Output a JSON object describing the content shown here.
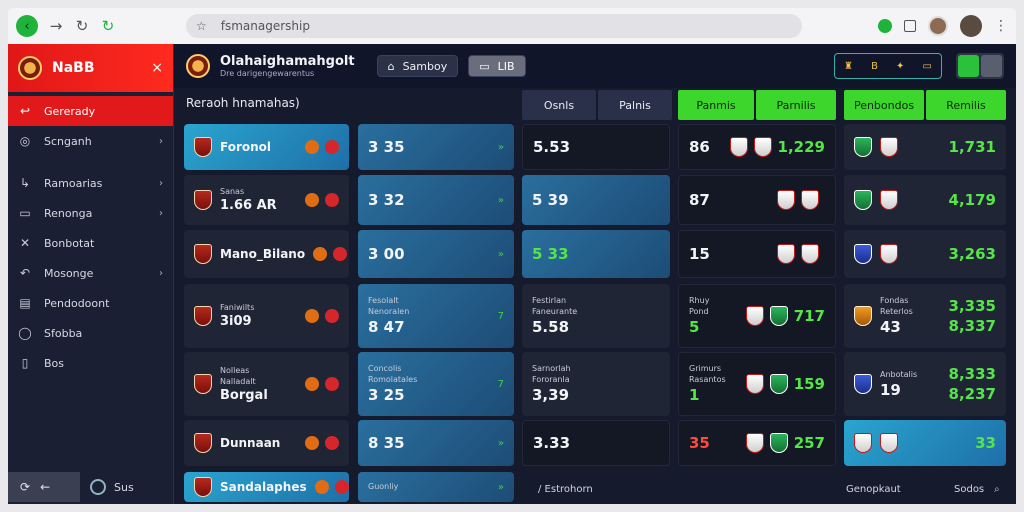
{
  "browser": {
    "url": "fsmanagership",
    "nav_back": "‹",
    "nav_forward": "→",
    "nav_reload": "↻",
    "nav_extra": "↻",
    "star": "☆",
    "menu": "⋮"
  },
  "sidebar": {
    "brand": "NаBB",
    "close": "×",
    "items": [
      {
        "label": "Gererady",
        "icon": "↩",
        "chev": ""
      },
      {
        "label": "Scnganh",
        "icon": "◎",
        "chev": "›"
      },
      {
        "label": "Ramoarias",
        "icon": "↳",
        "chev": "›"
      },
      {
        "label": "Renonga",
        "icon": "▭",
        "chev": "›"
      },
      {
        "label": "Bonbotat",
        "icon": "✕",
        "chev": ""
      },
      {
        "label": "Mosonge",
        "icon": "↶",
        "chev": "›"
      },
      {
        "label": "Pendodoont",
        "icon": "▤",
        "chev": ""
      },
      {
        "label": "Sfobba",
        "icon": "◯",
        "chev": ""
      },
      {
        "label": "Bos",
        "icon": "▯",
        "chev": ""
      }
    ],
    "footer_left_icon": "⟳",
    "footer_left_label": "←",
    "footer_right": "Sus"
  },
  "topbar": {
    "title": "Olahaighamahgolt",
    "subtitle": "Dre darigengewarentus",
    "btn1_icon": "⌂",
    "btn1": "Samboy",
    "btn2_icon": "▭",
    "btn2": "LIB",
    "status": [
      "♜",
      "B",
      "✦",
      "▭"
    ]
  },
  "main": {
    "section_title": "Reraoh hnamahas)",
    "tabs_dark": [
      "Osnls",
      "Palnis"
    ],
    "tabs_green1": [
      "Panmis",
      "Parnilis"
    ],
    "tabs_green2": [
      "Penbondos",
      "Remilis"
    ]
  },
  "col1": [
    {
      "label": "Foronol",
      "kind": "bright"
    },
    {
      "top": "Sanas",
      "label": "1.66 AR",
      "kind": "dark"
    },
    {
      "label": "Mano_Bilano",
      "kind": "dark"
    },
    {
      "top": "Faniwilts",
      "label": "3i09",
      "kind": "dark"
    },
    {
      "top": "Nolleas",
      "sub": "Nalladalt",
      "label": "Borgal",
      "kind": "dark"
    },
    {
      "label": "Dunnaan",
      "kind": "dark"
    },
    {
      "label": "Sandalaphes",
      "kind": "bright"
    }
  ],
  "col2": [
    {
      "val": "3 35"
    },
    {
      "val": "3 32"
    },
    {
      "val": "3 00"
    },
    {
      "top": "Fesolalt",
      "sub": "Nenoralen",
      "val": "8 47",
      "tick": "7"
    },
    {
      "top": "Concolis",
      "sub": "Romolatales",
      "val": "3 25",
      "tick": "7"
    },
    {
      "val": "8 35"
    },
    {
      "top": "Guonliy",
      "val": ""
    }
  ],
  "col3": [
    {
      "val": "5.53"
    },
    {
      "val": "5 39"
    },
    {
      "val": "5 33"
    },
    {
      "top": "Festirlan",
      "sub": "Faneurante",
      "val": "5.58"
    },
    {
      "top": "Sarnorlah",
      "sub": "Fororanla",
      "val": "3,39"
    },
    {
      "val": "3.33"
    },
    {
      "val": "/ Estrohorn"
    }
  ],
  "col4": [
    {
      "left": "86",
      "right": "1,229"
    },
    {
      "left": "87",
      "right": ""
    },
    {
      "left": "15",
      "right": ""
    },
    {
      "top": "Rhuy",
      "sub": "Pond",
      "left": "5",
      "right": "717"
    },
    {
      "top": "Grimurs",
      "sub": "Rasantos",
      "left": "1",
      "right": "159"
    },
    {
      "left": "35",
      "right": "257"
    }
  ],
  "col5": [
    {
      "right": "1,731"
    },
    {
      "right": "4,179"
    },
    {
      "right": "3,263"
    },
    {
      "top": "Fondas",
      "sub": "Reterlos",
      "mid": "43",
      "right1": "3,335",
      "right2": "8,337"
    },
    {
      "top": "Anbotalis",
      "mid": "19",
      "right1": "8,333",
      "right2": "8,237"
    },
    {
      "right": "33"
    }
  ],
  "footer": {
    "mid": "Genopkaut",
    "right": "Sodos"
  }
}
